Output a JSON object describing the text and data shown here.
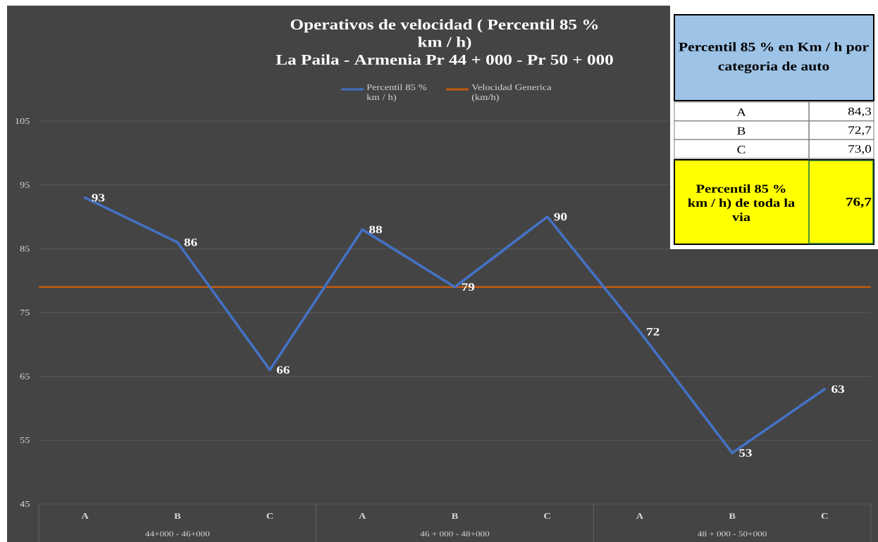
{
  "chart_data": [
    {
      "type": "line",
      "title": "Operativos de velocidad ( Percentil 85 % km / h)",
      "subtitle": "La Paila - Armenia  Pr   44 + 000 - Pr   50 + 000",
      "categories": [
        "A",
        "B",
        "C",
        "A",
        "B",
        "C",
        "A",
        "B",
        "C"
      ],
      "series": [
        {
          "name": "Percentil 85 % km / h)",
          "color": "#4472c4",
          "values": [
            93,
            86,
            66,
            88,
            79,
            90,
            72,
            53,
            63
          ]
        }
      ],
      "ref_lines": [
        {
          "axis": "y",
          "value": 79,
          "label": "Velocidad Generica (km/h)",
          "color": "#c55a11"
        }
      ],
      "ylim": [
        45,
        105
      ],
      "yticks": [
        45,
        55,
        65,
        75,
        85,
        95,
        105
      ],
      "grid": "y",
      "legend": "top",
      "data_labels": true,
      "annotations": [
        "44+000 -  46+000",
        "46 + 000 -  48+000",
        "48 + 000 -  50+000"
      ]
    },
    {
      "type": "other",
      "annotations": [
        "Percentil 85 % en Km / h por",
        "categoria de auto",
        "A",
        "84,3",
        "B",
        "72,7",
        "C",
        "73,0",
        "Percentil 85 % km / h) de toda la via",
        "76,7"
      ]
    }
  ]
}
